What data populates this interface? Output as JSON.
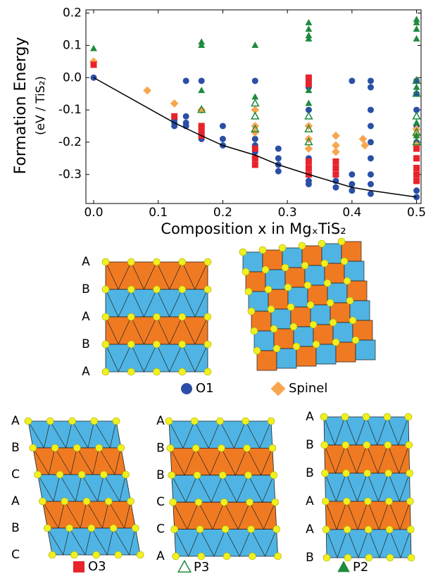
{
  "chart_data": {
    "type": "scatter",
    "y_label": "Formation Energy",
    "y_label_units": "(eV / TiS₂)",
    "x_label": "Composition x in MgₓTiS₂",
    "xlim": [
      -0.012,
      0.507
    ],
    "ylim": [
      -0.39,
      0.21
    ],
    "xticks": [
      {
        "value": 0,
        "label": "0.0"
      },
      0.1,
      0.2,
      0.3,
      0.4,
      0.5
    ],
    "yticks": [
      0.2,
      0.1,
      {
        "value": 0,
        "label": "0.0"
      },
      -0.1,
      -0.2,
      -0.3
    ],
    "series": [
      {
        "name": "O1",
        "color": "#2b4fa6",
        "marker": "circle",
        "x": [
          0,
          0.125,
          0.125,
          0.125,
          0.143,
          0.143,
          0.143,
          0.143,
          0.167,
          0.167,
          0.167,
          0.167,
          0.167,
          0.2,
          0.2,
          0.2,
          0.25,
          0.25,
          0.25,
          0.25,
          0.25,
          0.286,
          0.286,
          0.286,
          0.286,
          0.333,
          0.333,
          0.333,
          0.333,
          0.333,
          0.333,
          0.333,
          0.333,
          0.333,
          0.375,
          0.375,
          0.4,
          0.4,
          0.4,
          0.4,
          0.429,
          0.429,
          0.429,
          0.429,
          0.429,
          0.429,
          0.429,
          0.429,
          0.429,
          0.5,
          0.5,
          0.5,
          0.5,
          0.5,
          0.5,
          0.5,
          0.5,
          0.5
        ],
        "values": [
          0,
          -0.13,
          -0.14,
          -0.15,
          -0.01,
          -0.12,
          -0.14,
          -0.15,
          -0.01,
          -0.15,
          -0.17,
          -0.18,
          -0.19,
          -0.15,
          -0.19,
          -0.21,
          -0.01,
          -0.19,
          -0.21,
          -0.23,
          -0.25,
          -0.22,
          -0.25,
          -0.27,
          -0.29,
          -0.01,
          -0.02,
          -0.03,
          -0.1,
          -0.25,
          -0.28,
          -0.3,
          -0.32,
          -0.33,
          -0.32,
          -0.34,
          -0.01,
          -0.3,
          -0.33,
          -0.35,
          -0.01,
          -0.03,
          -0.1,
          -0.15,
          -0.2,
          -0.25,
          -0.3,
          -0.33,
          -0.36,
          -0.01,
          -0.05,
          -0.1,
          -0.15,
          -0.2,
          -0.25,
          -0.3,
          -0.35,
          -0.37
        ]
      },
      {
        "name": "Spinel",
        "color": "#f7a64e",
        "marker": "diamond",
        "x": [
          0,
          0.083,
          0.125,
          0.167,
          0.25,
          0.25,
          0.25,
          0.333,
          0.333,
          0.333,
          0.375,
          0.375,
          0.375,
          0.417,
          0.42,
          0.5,
          0.5,
          0.5
        ],
        "values": [
          0.05,
          -0.04,
          -0.08,
          -0.1,
          -0.1,
          -0.15,
          -0.17,
          -0.15,
          -0.19,
          -0.22,
          -0.18,
          -0.21,
          -0.23,
          -0.19,
          -0.21,
          -0.16,
          -0.18,
          -0.21
        ]
      },
      {
        "name": "O3",
        "color": "#e8232a",
        "marker": "square",
        "x": [
          0,
          0.125,
          0.167,
          0.167,
          0.167,
          0.25,
          0.25,
          0.25,
          0.333,
          0.333,
          0.333,
          0.333,
          0.333,
          0.375,
          0.375,
          0.375,
          0.5,
          0.5,
          0.5,
          0.5,
          0.5
        ],
        "values": [
          0.04,
          -0.12,
          -0.15,
          -0.16,
          -0.18,
          -0.22,
          -0.25,
          -0.27,
          0,
          -0.02,
          -0.26,
          -0.28,
          -0.3,
          -0.26,
          -0.28,
          -0.3,
          -0.22,
          -0.25,
          -0.28,
          -0.3,
          -0.32
        ]
      },
      {
        "name": "P3",
        "color": "#1e8a3e",
        "marker": "triangle-open",
        "x": [
          0.167,
          0.25,
          0.25,
          0.25,
          0.333,
          0.333,
          0.333,
          0.5,
          0.5,
          0.5,
          0.5,
          0.5
        ],
        "values": [
          -0.1,
          -0.08,
          -0.12,
          -0.16,
          -0.12,
          -0.16,
          -0.2,
          -0.01,
          -0.05,
          -0.12,
          -0.17,
          -0.2
        ]
      },
      {
        "name": "P2",
        "color": "#1e8a3e",
        "marker": "triangle",
        "x": [
          0,
          0.167,
          0.167,
          0.167,
          0.25,
          0.25,
          0.333,
          0.333,
          0.333,
          0.333,
          0.333,
          0.333,
          0.5,
          0.5,
          0.5,
          0.5,
          0.5,
          0.5,
          0.5
        ],
        "values": [
          0.09,
          0.11,
          0.1,
          -0.04,
          0.1,
          -0.06,
          0.17,
          0.15,
          0.13,
          0.12,
          -0.04,
          -0.08,
          0.18,
          0.17,
          0.15,
          0.12,
          -0.03,
          -0.14,
          -0.18
        ]
      }
    ],
    "hull_line": {
      "color": "#000000",
      "x": [
        0,
        0.125,
        0.167,
        0.2,
        0.25,
        0.286,
        0.333,
        0.4,
        0.429,
        0.5
      ],
      "values": [
        0,
        -0.14,
        -0.18,
        -0.21,
        -0.24,
        -0.27,
        -0.3,
        -0.34,
        -0.35,
        -0.37
      ]
    }
  },
  "structures": [
    {
      "series": 0,
      "layers": [
        "A",
        "B",
        "A",
        "B",
        "A"
      ]
    },
    {
      "series": 1
    },
    {
      "series": 2,
      "layers": [
        "A",
        "B",
        "C",
        "A",
        "B",
        "C"
      ]
    },
    {
      "series": 3,
      "layers": [
        "A",
        "B",
        "B",
        "C",
        "C",
        "A"
      ]
    },
    {
      "series": 4,
      "layers": [
        "A",
        "B",
        "B",
        "A",
        "A",
        "B"
      ]
    }
  ]
}
